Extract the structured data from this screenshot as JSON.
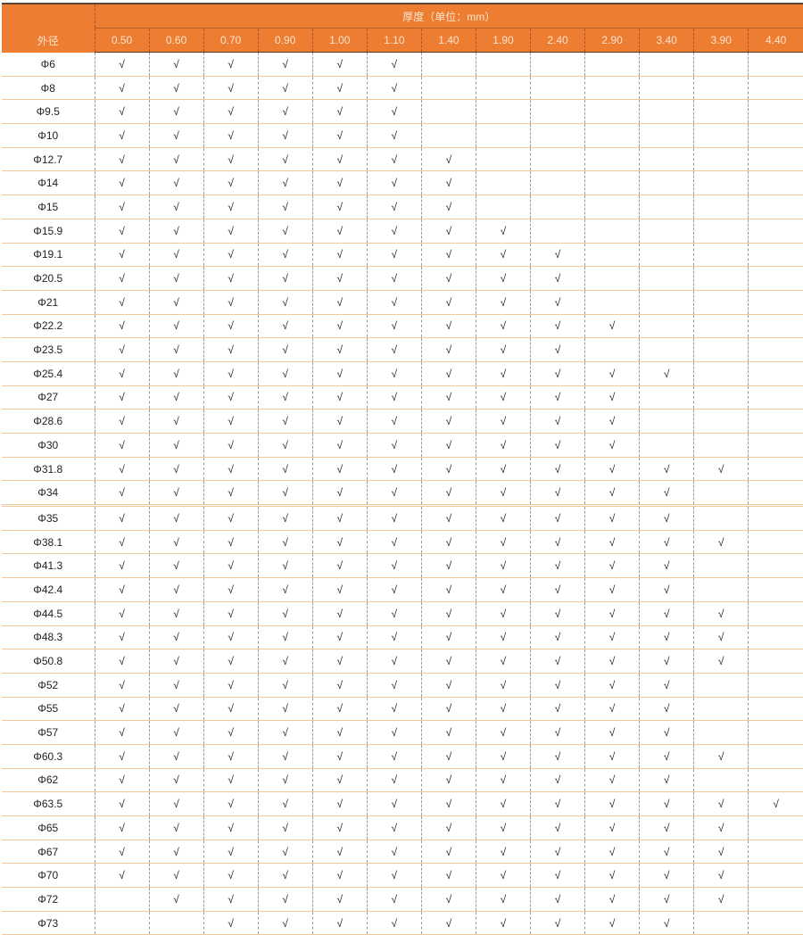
{
  "header": {
    "outer_diameter_label": "外径",
    "thickness_label": "厚度（单位：mm）",
    "thickness_columns": [
      "0.50",
      "0.60",
      "0.70",
      "0.90",
      "1.00",
      "1.10",
      "1.40",
      "1.90",
      "2.40",
      "2.90",
      "3.40",
      "3.90",
      "4.40"
    ]
  },
  "check_symbol": "√",
  "colors": {
    "header_bg": "#ed7d31",
    "row_border": "#f0c89a"
  },
  "rows": [
    {
      "od": "Φ6",
      "marks": [
        1,
        1,
        1,
        1,
        1,
        1,
        0,
        0,
        0,
        0,
        0,
        0,
        0
      ]
    },
    {
      "od": "Φ8",
      "marks": [
        1,
        1,
        1,
        1,
        1,
        1,
        0,
        0,
        0,
        0,
        0,
        0,
        0
      ]
    },
    {
      "od": "Φ9.5",
      "marks": [
        1,
        1,
        1,
        1,
        1,
        1,
        0,
        0,
        0,
        0,
        0,
        0,
        0
      ]
    },
    {
      "od": "Φ10",
      "marks": [
        1,
        1,
        1,
        1,
        1,
        1,
        0,
        0,
        0,
        0,
        0,
        0,
        0
      ]
    },
    {
      "od": "Φ12.7",
      "marks": [
        1,
        1,
        1,
        1,
        1,
        1,
        1,
        0,
        0,
        0,
        0,
        0,
        0
      ]
    },
    {
      "od": "Φ14",
      "marks": [
        1,
        1,
        1,
        1,
        1,
        1,
        1,
        0,
        0,
        0,
        0,
        0,
        0
      ]
    },
    {
      "od": "Φ15",
      "marks": [
        1,
        1,
        1,
        1,
        1,
        1,
        1,
        0,
        0,
        0,
        0,
        0,
        0
      ]
    },
    {
      "od": "Φ15.9",
      "marks": [
        1,
        1,
        1,
        1,
        1,
        1,
        1,
        1,
        0,
        0,
        0,
        0,
        0
      ]
    },
    {
      "od": "Φ19.1",
      "marks": [
        1,
        1,
        1,
        1,
        1,
        1,
        1,
        1,
        1,
        0,
        0,
        0,
        0
      ]
    },
    {
      "od": "Φ20.5",
      "marks": [
        1,
        1,
        1,
        1,
        1,
        1,
        1,
        1,
        1,
        0,
        0,
        0,
        0
      ]
    },
    {
      "od": "Φ21",
      "marks": [
        1,
        1,
        1,
        1,
        1,
        1,
        1,
        1,
        1,
        0,
        0,
        0,
        0
      ]
    },
    {
      "od": "Φ22.2",
      "marks": [
        1,
        1,
        1,
        1,
        1,
        1,
        1,
        1,
        1,
        1,
        0,
        0,
        0
      ]
    },
    {
      "od": "Φ23.5",
      "marks": [
        1,
        1,
        1,
        1,
        1,
        1,
        1,
        1,
        1,
        0,
        0,
        0,
        0
      ]
    },
    {
      "od": "Φ25.4",
      "marks": [
        1,
        1,
        1,
        1,
        1,
        1,
        1,
        1,
        1,
        1,
        1,
        0,
        0
      ]
    },
    {
      "od": "Φ27",
      "marks": [
        1,
        1,
        1,
        1,
        1,
        1,
        1,
        1,
        1,
        1,
        0,
        0,
        0
      ]
    },
    {
      "od": "Φ28.6",
      "marks": [
        1,
        1,
        1,
        1,
        1,
        1,
        1,
        1,
        1,
        1,
        0,
        0,
        0
      ]
    },
    {
      "od": "Φ30",
      "marks": [
        1,
        1,
        1,
        1,
        1,
        1,
        1,
        1,
        1,
        1,
        0,
        0,
        0
      ]
    },
    {
      "od": "Φ31.8",
      "marks": [
        1,
        1,
        1,
        1,
        1,
        1,
        1,
        1,
        1,
        1,
        1,
        1,
        0
      ]
    },
    {
      "od": "Φ34",
      "marks": [
        1,
        1,
        1,
        1,
        1,
        1,
        1,
        1,
        1,
        1,
        1,
        0,
        0
      ]
    },
    {
      "od": "Φ35",
      "marks": [
        1,
        1,
        1,
        1,
        1,
        1,
        1,
        1,
        1,
        1,
        1,
        0,
        0
      ]
    },
    {
      "od": "Φ38.1",
      "marks": [
        1,
        1,
        1,
        1,
        1,
        1,
        1,
        1,
        1,
        1,
        1,
        1,
        0
      ]
    },
    {
      "od": "Φ41.3",
      "marks": [
        1,
        1,
        1,
        1,
        1,
        1,
        1,
        1,
        1,
        1,
        1,
        0,
        0
      ]
    },
    {
      "od": "Φ42.4",
      "marks": [
        1,
        1,
        1,
        1,
        1,
        1,
        1,
        1,
        1,
        1,
        1,
        0,
        0
      ]
    },
    {
      "od": "Φ44.5",
      "marks": [
        1,
        1,
        1,
        1,
        1,
        1,
        1,
        1,
        1,
        1,
        1,
        1,
        0
      ]
    },
    {
      "od": "Φ48.3",
      "marks": [
        1,
        1,
        1,
        1,
        1,
        1,
        1,
        1,
        1,
        1,
        1,
        1,
        0
      ]
    },
    {
      "od": "Φ50.8",
      "marks": [
        1,
        1,
        1,
        1,
        1,
        1,
        1,
        1,
        1,
        1,
        1,
        1,
        0
      ]
    },
    {
      "od": "Φ52",
      "marks": [
        1,
        1,
        1,
        1,
        1,
        1,
        1,
        1,
        1,
        1,
        1,
        0,
        0
      ]
    },
    {
      "od": "Φ55",
      "marks": [
        1,
        1,
        1,
        1,
        1,
        1,
        1,
        1,
        1,
        1,
        1,
        0,
        0
      ]
    },
    {
      "od": "Φ57",
      "marks": [
        1,
        1,
        1,
        1,
        1,
        1,
        1,
        1,
        1,
        1,
        1,
        0,
        0
      ]
    },
    {
      "od": "Φ60.3",
      "marks": [
        1,
        1,
        1,
        1,
        1,
        1,
        1,
        1,
        1,
        1,
        1,
        1,
        0
      ]
    },
    {
      "od": "Φ62",
      "marks": [
        1,
        1,
        1,
        1,
        1,
        1,
        1,
        1,
        1,
        1,
        1,
        0,
        0
      ]
    },
    {
      "od": "Φ63.5",
      "marks": [
        1,
        1,
        1,
        1,
        1,
        1,
        1,
        1,
        1,
        1,
        1,
        1,
        1
      ]
    },
    {
      "od": "Φ65",
      "marks": [
        1,
        1,
        1,
        1,
        1,
        1,
        1,
        1,
        1,
        1,
        1,
        1,
        0
      ]
    },
    {
      "od": "Φ67",
      "marks": [
        1,
        1,
        1,
        1,
        1,
        1,
        1,
        1,
        1,
        1,
        1,
        1,
        0
      ]
    },
    {
      "od": "Φ70",
      "marks": [
        1,
        1,
        1,
        1,
        1,
        1,
        1,
        1,
        1,
        1,
        1,
        1,
        0
      ]
    },
    {
      "od": "Φ72",
      "marks": [
        0,
        1,
        1,
        1,
        1,
        1,
        1,
        1,
        1,
        1,
        1,
        1,
        0
      ]
    },
    {
      "od": "Φ73",
      "marks": [
        0,
        0,
        1,
        1,
        1,
        1,
        1,
        1,
        1,
        1,
        1,
        0,
        0
      ]
    }
  ]
}
